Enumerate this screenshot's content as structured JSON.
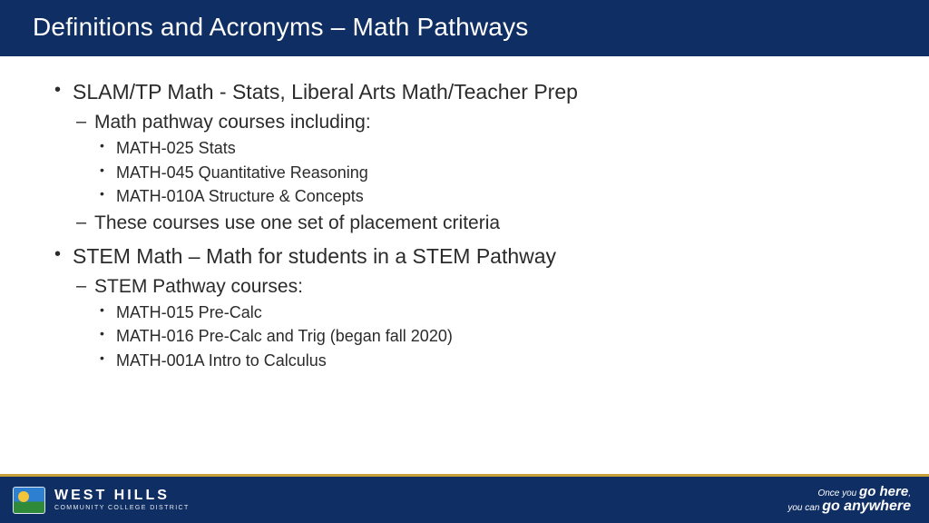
{
  "colors": {
    "header_bg": "#0f2e63",
    "footer_bg": "#0f2e63",
    "footer_border": "#c7a03a",
    "text": "#2b2b2b",
    "title_text": "#ffffff"
  },
  "title": "Definitions and Acronyms – Math Pathways",
  "bullets": [
    {
      "text": "SLAM/TP Math - Stats, Liberal Arts Math/Teacher Prep",
      "children": [
        {
          "text": "Math pathway courses including:",
          "children": [
            {
              "text": "MATH-025 Stats"
            },
            {
              "text": "MATH-045 Quantitative Reasoning"
            },
            {
              "text": "MATH-010A Structure & Concepts"
            }
          ]
        },
        {
          "text": "These courses use one set of placement criteria"
        }
      ]
    },
    {
      "text": "STEM Math – Math for students in a STEM Pathway",
      "children": [
        {
          "text": "STEM Pathway courses:",
          "children": [
            {
              "text": "MATH-015 Pre-Calc"
            },
            {
              "text": "MATH-016 Pre-Calc and Trig (began fall 2020)"
            },
            {
              "text": "MATH-001A Intro to Calculus"
            }
          ]
        }
      ]
    }
  ],
  "footer": {
    "brand_name": "WEST HILLS",
    "brand_sub": "COMMUNITY COLLEGE DISTRICT",
    "tagline_prefix1": "Once you ",
    "tagline_bold1": "go here",
    "tagline_suffix1": ",",
    "tagline_prefix2": "you can ",
    "tagline_bold2": "go anywhere"
  }
}
